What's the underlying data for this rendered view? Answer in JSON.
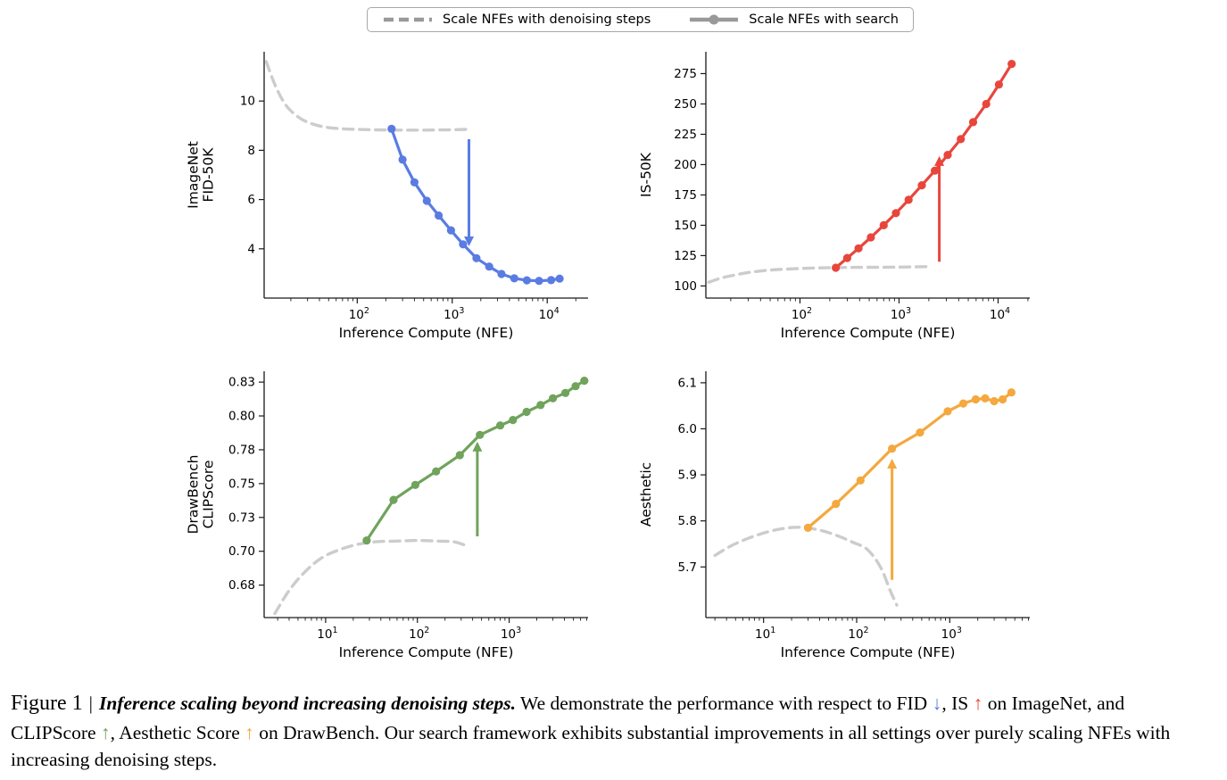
{
  "page": {
    "background": "#ffffff"
  },
  "legend": {
    "box_border_color": "#a8a8a8",
    "handle_color": "#999999",
    "items": [
      {
        "label": "Scale NFEs with denoising steps",
        "style": "dashed"
      },
      {
        "label": "Scale NFEs with search",
        "style": "solid-with-marker"
      }
    ]
  },
  "colors": {
    "fid_blue": "#5a7ce2",
    "is_red": "#e8463d",
    "clip_green": "#70a35c",
    "aesthetic_orange": "#f4a83e",
    "baseline_gray": "#cccccc"
  },
  "caption": {
    "label": "Figure 1",
    "separator": "|",
    "title": "Inference scaling beyond increasing denoising steps.",
    "segments": [
      {
        "text": " We demonstrate the performance with respect to FID "
      },
      {
        "text": "↓",
        "color": "#5a7ce2"
      },
      {
        "text": ", IS "
      },
      {
        "text": "↑",
        "color": "#e8463d"
      },
      {
        "text": " on ImageNet, and CLIPScore "
      },
      {
        "text": "↑",
        "color": "#70a35c"
      },
      {
        "text": ", Aesthetic Score "
      },
      {
        "text": "↑",
        "color": "#f4a83e"
      },
      {
        "text": " on DrawBench. Our search framework exhibits substantial improvements in all settings over purely scaling NFEs with increasing denoising steps."
      }
    ]
  },
  "chart_data": [
    {
      "name": "imagenet-fid-50k",
      "type": "line",
      "x_scale": "log",
      "xlabel": "Inference Compute (NFE)",
      "ylabel_lines": [
        "ImageNet",
        "FID-50K"
      ],
      "xlog_range": [
        1.02,
        4.43
      ],
      "ylim": [
        2.0,
        12.0
      ],
      "yticks": [
        {
          "v": 4,
          "label": "4"
        },
        {
          "v": 6,
          "label": "6"
        },
        {
          "v": 8,
          "label": "8"
        },
        {
          "v": 10,
          "label": "10"
        }
      ],
      "xtick_exponents": [
        2,
        3,
        4
      ],
      "series": [
        {
          "name": "Scale NFEs with denoising steps",
          "color": "#cccccc",
          "dashed": true,
          "markers": false,
          "x": [
            11,
            14,
            18,
            24,
            32,
            45,
            65,
            100,
            160,
            280,
            500,
            900,
            1500
          ],
          "y": [
            11.6,
            10.55,
            9.8,
            9.35,
            9.1,
            8.95,
            8.88,
            8.85,
            8.83,
            8.82,
            8.82,
            8.83,
            8.85
          ]
        },
        {
          "name": "Scale NFEs with search",
          "color": "#5a7ce2",
          "dashed": false,
          "markers": true,
          "x": [
            230,
            300,
            400,
            540,
            720,
            970,
            1300,
            1800,
            2450,
            3300,
            4500,
            6100,
            8200,
            11000,
            13500
          ],
          "y": [
            8.87,
            7.62,
            6.7,
            5.95,
            5.35,
            4.75,
            4.18,
            3.62,
            3.28,
            2.98,
            2.8,
            2.72,
            2.7,
            2.73,
            2.79
          ]
        }
      ],
      "arrow": {
        "x": 1500,
        "from": 8.45,
        "to": 4.1,
        "color": "#5a7ce2",
        "direction": "down"
      }
    },
    {
      "name": "is-50k",
      "type": "line",
      "x_scale": "log",
      "xlabel": "Inference Compute (NFE)",
      "ylabel_lines": [
        "IS-50K"
      ],
      "xlog_range": [
        1.05,
        4.32
      ],
      "ylim": [
        90,
        293
      ],
      "yticks": [
        {
          "v": 100,
          "label": "100"
        },
        {
          "v": 125,
          "label": "125"
        },
        {
          "v": 150,
          "label": "150"
        },
        {
          "v": 175,
          "label": "175"
        },
        {
          "v": 200,
          "label": "200"
        },
        {
          "v": 225,
          "label": "225"
        },
        {
          "v": 250,
          "label": "250"
        },
        {
          "v": 275,
          "label": "275"
        }
      ],
      "xtick_exponents": [
        2,
        3,
        4
      ],
      "series": [
        {
          "name": "Scale NFEs with denoising steps",
          "color": "#cccccc",
          "dashed": true,
          "markers": false,
          "x": [
            12,
            16,
            22,
            30,
            42,
            60,
            90,
            140,
            220,
            360,
            600,
            1000,
            1600,
            2100
          ],
          "y": [
            103,
            106.5,
            109,
            111,
            112.5,
            113.5,
            114.2,
            114.8,
            115.1,
            115.3,
            115.4,
            115.5,
            115.8,
            116
          ]
        },
        {
          "name": "Scale NFEs with search",
          "color": "#e8463d",
          "dashed": false,
          "markers": true,
          "x": [
            230,
            300,
            390,
            520,
            700,
            930,
            1250,
            1700,
            2300,
            3100,
            4200,
            5600,
            7600,
            10200,
            13700
          ],
          "y": [
            115,
            123,
            131,
            140,
            150,
            160,
            171,
            183,
            195,
            208,
            221,
            235,
            250,
            266,
            283
          ]
        }
      ],
      "arrow": {
        "x": 2550,
        "from": 120,
        "to": 207,
        "color": "#e8463d",
        "direction": "up"
      }
    },
    {
      "name": "drawbench-clipscore",
      "type": "line",
      "x_scale": "log",
      "xlabel": "Inference Compute (NFE)",
      "ylabel_lines": [
        "DrawBench",
        "CLIPScore"
      ],
      "xlog_range": [
        0.33,
        3.86
      ],
      "ylim": [
        0.656,
        0.838
      ],
      "yticks": [
        {
          "v": 0.68,
          "label": "0.68"
        },
        {
          "v": 0.705,
          "label": "0.70"
        },
        {
          "v": 0.73,
          "label": "0.73"
        },
        {
          "v": 0.755,
          "label": "0.75"
        },
        {
          "v": 0.78,
          "label": "0.78"
        },
        {
          "v": 0.805,
          "label": "0.80"
        },
        {
          "v": 0.83,
          "label": "0.83"
        }
      ],
      "xtick_exponents": [
        1,
        2,
        3
      ],
      "series": [
        {
          "name": "Scale NFEs with denoising steps",
          "color": "#cccccc",
          "dashed": true,
          "markers": false,
          "x": [
            2.8,
            4,
            6,
            9,
            14,
            22,
            35,
            60,
            100,
            170,
            250,
            330
          ],
          "y": [
            0.659,
            0.676,
            0.69,
            0.7,
            0.706,
            0.71,
            0.712,
            0.7125,
            0.713,
            0.7125,
            0.712,
            0.7095
          ]
        },
        {
          "name": "Scale NFEs with search",
          "color": "#70a35c",
          "dashed": false,
          "markers": true,
          "x": [
            28,
            55,
            95,
            160,
            290,
            480,
            800,
            1100,
            1550,
            2200,
            3000,
            4100,
            5300,
            6600
          ],
          "y": [
            0.713,
            0.743,
            0.754,
            0.764,
            0.776,
            0.791,
            0.798,
            0.802,
            0.808,
            0.813,
            0.818,
            0.822,
            0.827,
            0.831
          ]
        }
      ],
      "arrow": {
        "x": 450,
        "from": 0.716,
        "to": 0.786,
        "color": "#70a35c",
        "direction": "up"
      }
    },
    {
      "name": "drawbench-aesthetic",
      "type": "line",
      "x_scale": "log",
      "xlabel": "Inference Compute (NFE)",
      "ylabel_lines": [
        "Aesthetic"
      ],
      "xlog_range": [
        0.38,
        3.86
      ],
      "ylim": [
        5.59,
        6.125
      ],
      "yticks": [
        {
          "v": 5.7,
          "label": "5.7"
        },
        {
          "v": 5.8,
          "label": "5.8"
        },
        {
          "v": 5.9,
          "label": "5.9"
        },
        {
          "v": 6.0,
          "label": "6.0"
        },
        {
          "v": 6.1,
          "label": "6.1"
        }
      ],
      "xtick_exponents": [
        1,
        2,
        3
      ],
      "series": [
        {
          "name": "Scale NFEs with denoising steps",
          "color": "#cccccc",
          "dashed": true,
          "markers": false,
          "x": [
            3,
            4.5,
            7,
            11,
            17,
            26,
            40,
            60,
            90,
            130,
            180,
            230,
            270
          ],
          "y": [
            5.725,
            5.746,
            5.763,
            5.776,
            5.784,
            5.786,
            5.78,
            5.769,
            5.754,
            5.738,
            5.7,
            5.648,
            5.617
          ]
        },
        {
          "name": "Scale NFEs with search",
          "color": "#f4a83e",
          "dashed": false,
          "markers": true,
          "x": [
            30,
            60,
            110,
            240,
            480,
            950,
            1400,
            1900,
            2400,
            3000,
            3700,
            4600
          ],
          "y": [
            5.785,
            5.837,
            5.888,
            5.957,
            5.992,
            6.038,
            6.055,
            6.064,
            6.066,
            6.06,
            6.064,
            6.079
          ]
        }
      ],
      "arrow": {
        "x": 240,
        "from": 5.672,
        "to": 5.935,
        "color": "#f4a83e",
        "direction": "up"
      }
    }
  ]
}
